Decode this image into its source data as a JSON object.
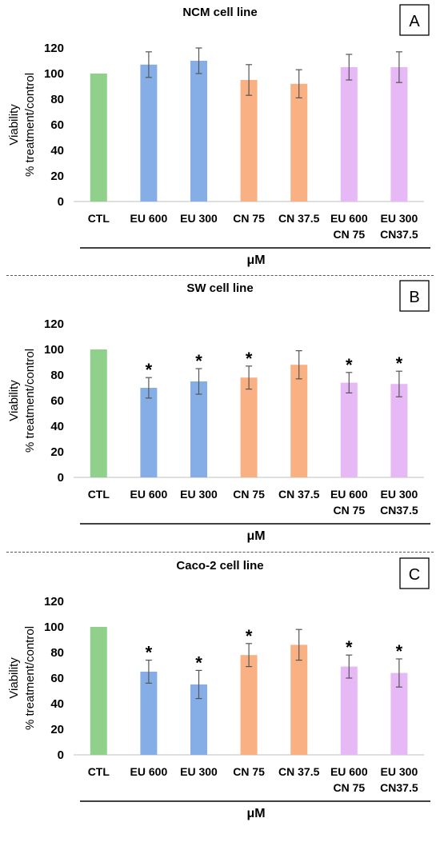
{
  "chart_data": [
    {
      "type": "bar",
      "panel_label": "A",
      "title": "NCM cell line",
      "ylabel_line1": "Viability",
      "ylabel_line2": "% treatment/control",
      "xlabel": "μM",
      "ylim": [
        0,
        120
      ],
      "yticks": [
        0,
        20,
        40,
        60,
        80,
        100,
        120
      ],
      "categories": [
        [
          "CTL"
        ],
        [
          "EU 600"
        ],
        [
          "EU 300"
        ],
        [
          "CN 75"
        ],
        [
          "CN 37.5"
        ],
        [
          "EU 600",
          "CN  75"
        ],
        [
          "EU 300",
          "CN37.5"
        ]
      ],
      "values": [
        100,
        107,
        110,
        95,
        92,
        105,
        105
      ],
      "errors": [
        0,
        10,
        10,
        12,
        11,
        10,
        12
      ],
      "significant": [
        false,
        false,
        false,
        false,
        false,
        false,
        false
      ],
      "colors": [
        "#8fd18a",
        "#86aee6",
        "#86aee6",
        "#f9b183",
        "#f9b183",
        "#e6b9f6",
        "#e6b9f6"
      ]
    },
    {
      "type": "bar",
      "panel_label": "B",
      "title": "SW cell line",
      "ylabel_line1": "Viability",
      "ylabel_line2": "% treatment/control",
      "xlabel": "μM",
      "ylim": [
        0,
        120
      ],
      "yticks": [
        0,
        20,
        40,
        60,
        80,
        100,
        120
      ],
      "categories": [
        [
          "CTL"
        ],
        [
          "EU 600"
        ],
        [
          "EU 300"
        ],
        [
          "CN 75"
        ],
        [
          "CN 37.5"
        ],
        [
          "EU 600",
          "CN  75"
        ],
        [
          "EU 300",
          "CN37.5"
        ]
      ],
      "values": [
        100,
        70,
        75,
        78,
        88,
        74,
        73
      ],
      "errors": [
        0,
        8,
        10,
        9,
        11,
        8,
        10
      ],
      "significant": [
        false,
        true,
        true,
        true,
        false,
        true,
        true
      ],
      "colors": [
        "#8fd18a",
        "#86aee6",
        "#86aee6",
        "#f9b183",
        "#f9b183",
        "#e6b9f6",
        "#e6b9f6"
      ]
    },
    {
      "type": "bar",
      "panel_label": "C",
      "title": "Caco-2 cell line",
      "ylabel_line1": "Viability",
      "ylabel_line2": "% treatment/control",
      "xlabel": "μM",
      "ylim": [
        0,
        120
      ],
      "yticks": [
        0,
        20,
        40,
        60,
        80,
        100,
        120
      ],
      "categories": [
        [
          "CTL"
        ],
        [
          "EU 600"
        ],
        [
          "EU 300"
        ],
        [
          "CN 75"
        ],
        [
          "CN 37.5"
        ],
        [
          "EU 600",
          "CN  75"
        ],
        [
          "EU 300",
          "CN37.5"
        ]
      ],
      "values": [
        100,
        65,
        55,
        78,
        86,
        69,
        64
      ],
      "errors": [
        0,
        9,
        11,
        9,
        12,
        9,
        11
      ],
      "significant": [
        false,
        true,
        true,
        true,
        false,
        true,
        true
      ],
      "colors": [
        "#8fd18a",
        "#86aee6",
        "#86aee6",
        "#f9b183",
        "#f9b183",
        "#e6b9f6",
        "#e6b9f6"
      ]
    }
  ]
}
